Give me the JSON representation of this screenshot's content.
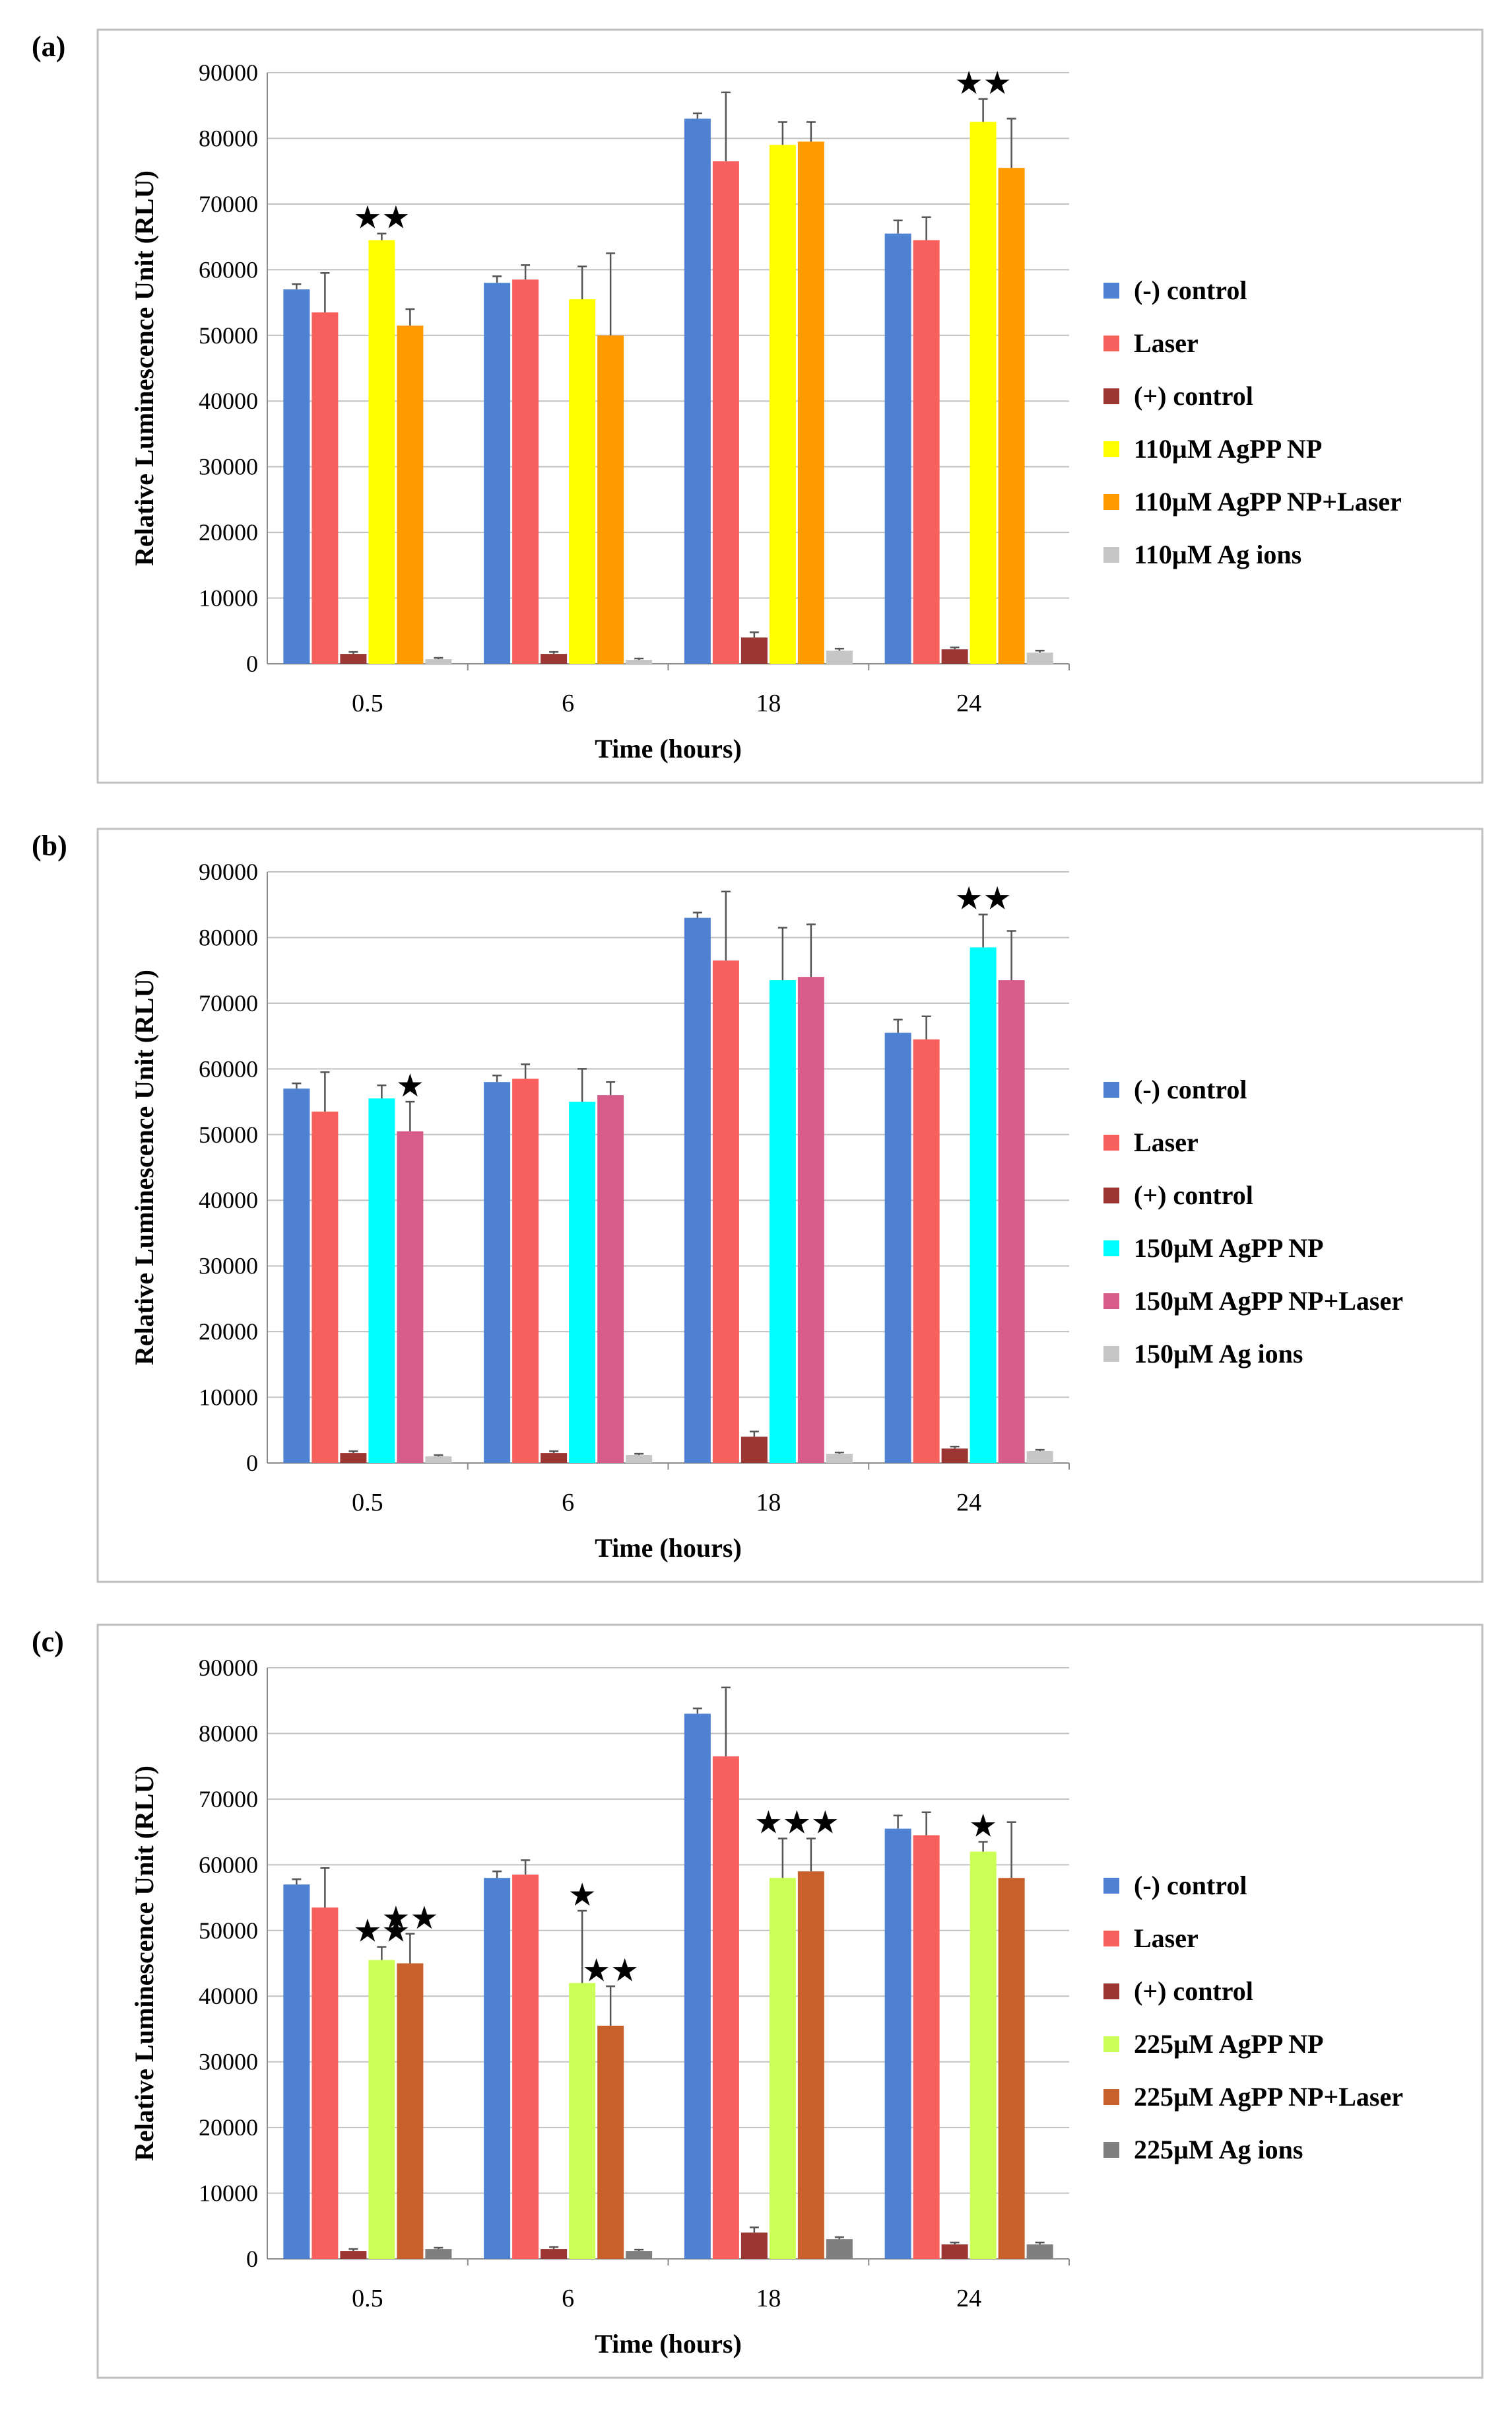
{
  "figure": {
    "panels": [
      {
        "label": "(a)",
        "chart_data": {
          "type": "bar",
          "title": "",
          "xlabel": "Time (hours)",
          "ylabel": "Relative Luminescence Unit (RLU)",
          "ylim": [
            0,
            90000
          ],
          "yticks": [
            0,
            10000,
            20000,
            30000,
            40000,
            50000,
            60000,
            70000,
            80000,
            90000
          ],
          "grid": true,
          "legend_position": "right",
          "categories": [
            "0.5",
            "6",
            "18",
            "24"
          ],
          "series": [
            {
              "name": "(-) control",
              "color": "#4f81d3",
              "values": [
                57000,
                58000,
                83000,
                65500
              ],
              "errors": [
                800,
                1000,
                800,
                2000
              ],
              "stars": [
                "",
                "",
                "",
                ""
              ]
            },
            {
              "name": "Laser",
              "color": "#f8605d",
              "values": [
                53500,
                58500,
                76500,
                64500
              ],
              "errors": [
                6000,
                2200,
                10500,
                3500
              ],
              "stars": [
                "",
                "",
                "",
                ""
              ]
            },
            {
              "name": "(+) control",
              "color": "#9b3633",
              "values": [
                1500,
                1500,
                4000,
                2200
              ],
              "errors": [
                300,
                300,
                800,
                300
              ],
              "stars": [
                "",
                "",
                "",
                ""
              ]
            },
            {
              "name": "110µM AgPP NP",
              "color": "#ffff00",
              "values": [
                64500,
                55500,
                79000,
                82500
              ],
              "errors": [
                1000,
                5000,
                3500,
                3500
              ],
              "stars": [
                "★★",
                "",
                "",
                "★★"
              ]
            },
            {
              "name": "110µM AgPP NP+Laser",
              "color": "#ff9a00",
              "values": [
                51500,
                50000,
                79500,
                75500
              ],
              "errors": [
                2500,
                12500,
                3000,
                7500
              ],
              "stars": [
                "",
                "",
                "",
                ""
              ]
            },
            {
              "name": "110µM Ag ions",
              "color": "#c6c6c6",
              "values": [
                700,
                600,
                2000,
                1700
              ],
              "errors": [
                200,
                200,
                300,
                300
              ],
              "stars": [
                "",
                "",
                "",
                ""
              ]
            }
          ]
        }
      },
      {
        "label": "(b)",
        "chart_data": {
          "type": "bar",
          "title": "",
          "xlabel": "Time (hours)",
          "ylabel": "Relative Luminescence Unit (RLU)",
          "ylim": [
            0,
            90000
          ],
          "yticks": [
            0,
            10000,
            20000,
            30000,
            40000,
            50000,
            60000,
            70000,
            80000,
            90000
          ],
          "grid": true,
          "legend_position": "right",
          "categories": [
            "0.5",
            "6",
            "18",
            "24"
          ],
          "series": [
            {
              "name": "(-) control",
              "color": "#4f81d3",
              "values": [
                57000,
                58000,
                83000,
                65500
              ],
              "errors": [
                800,
                1000,
                800,
                2000
              ],
              "stars": [
                "",
                "",
                "",
                ""
              ]
            },
            {
              "name": "Laser",
              "color": "#f8605d",
              "values": [
                53500,
                58500,
                76500,
                64500
              ],
              "errors": [
                6000,
                2200,
                10500,
                3500
              ],
              "stars": [
                "",
                "",
                "",
                ""
              ]
            },
            {
              "name": "(+) control",
              "color": "#9b3633",
              "values": [
                1500,
                1500,
                4000,
                2200
              ],
              "errors": [
                300,
                300,
                800,
                300
              ],
              "stars": [
                "",
                "",
                "",
                ""
              ]
            },
            {
              "name": "150µM AgPP NP",
              "color": "#00ffff",
              "values": [
                55500,
                55000,
                73500,
                78500
              ],
              "errors": [
                2000,
                5000,
                8000,
                5000
              ],
              "stars": [
                "",
                "",
                "",
                "★★"
              ]
            },
            {
              "name": "150µM AgPP NP+Laser",
              "color": "#d85c8a",
              "values": [
                50500,
                56000,
                74000,
                73500
              ],
              "errors": [
                4500,
                2000,
                8000,
                7500
              ],
              "stars": [
                "★",
                "",
                "",
                ""
              ]
            },
            {
              "name": "150µM Ag ions",
              "color": "#c6c6c6",
              "values": [
                1000,
                1200,
                1400,
                1800
              ],
              "errors": [
                200,
                200,
                200,
                200
              ],
              "stars": [
                "",
                "",
                "",
                ""
              ]
            }
          ]
        }
      },
      {
        "label": "(c)",
        "chart_data": {
          "type": "bar",
          "title": "",
          "xlabel": "Time (hours)",
          "ylabel": "Relative Luminescence Unit (RLU)",
          "ylim": [
            0,
            90000
          ],
          "yticks": [
            0,
            10000,
            20000,
            30000,
            40000,
            50000,
            60000,
            70000,
            80000,
            90000
          ],
          "grid": true,
          "legend_position": "right",
          "categories": [
            "0.5",
            "6",
            "18",
            "24"
          ],
          "series": [
            {
              "name": "(-) control",
              "color": "#4f81d3",
              "values": [
                57000,
                58000,
                83000,
                65500
              ],
              "errors": [
                800,
                1000,
                800,
                2000
              ],
              "stars": [
                "",
                "",
                "",
                ""
              ]
            },
            {
              "name": "Laser",
              "color": "#f8605d",
              "values": [
                53500,
                58500,
                76500,
                64500
              ],
              "errors": [
                6000,
                2200,
                10500,
                3500
              ],
              "stars": [
                "",
                "",
                "",
                ""
              ]
            },
            {
              "name": "(+) control",
              "color": "#9b3633",
              "values": [
                1200,
                1500,
                4000,
                2200
              ],
              "errors": [
                300,
                300,
                800,
                300
              ],
              "stars": [
                "",
                "",
                "",
                ""
              ]
            },
            {
              "name": "225µM AgPP NP",
              "color": "#ccff55",
              "values": [
                45500,
                42000,
                58000,
                62000
              ],
              "errors": [
                2000,
                11000,
                6000,
                1500
              ],
              "stars": [
                "★★",
                "★",
                "★★",
                "★"
              ]
            },
            {
              "name": "225µM AgPP NP+Laser",
              "color": "#c8602c",
              "values": [
                45000,
                35500,
                59000,
                58000
              ],
              "errors": [
                4500,
                6000,
                5000,
                8500
              ],
              "stars": [
                "★★",
                "★★",
                "★★",
                ""
              ]
            },
            {
              "name": "225µM Ag ions",
              "color": "#7f7f7f",
              "values": [
                1500,
                1200,
                3000,
                2200
              ],
              "errors": [
                200,
                200,
                300,
                300
              ],
              "stars": [
                "",
                "",
                "",
                ""
              ]
            }
          ]
        }
      }
    ]
  }
}
